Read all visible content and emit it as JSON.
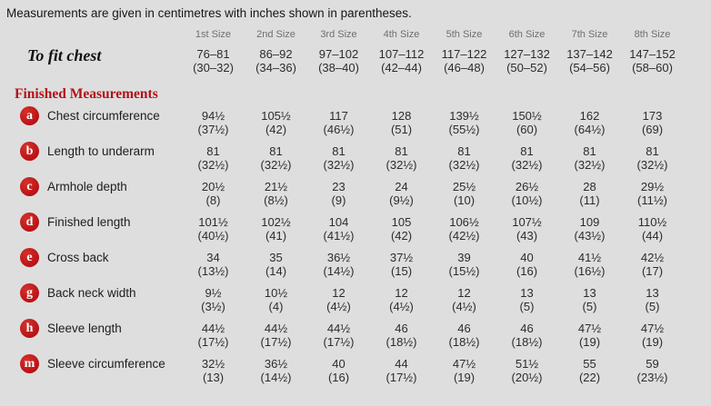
{
  "page": {
    "note": "Measurements are given in centimetres with inches shown in parentheses.",
    "section_heading": "Finished Measurements"
  },
  "colors": {
    "background": "#dedede",
    "heading_red": "#b11219",
    "badge_red": "#c2141a",
    "header_gray": "#6f6f6f",
    "text_dark": "#2c2c2c"
  },
  "table": {
    "size_headers": [
      "1st Size",
      "2nd Size",
      "3rd Size",
      "4th Size",
      "5th Size",
      "6th Size",
      "7th Size",
      "8th Size"
    ],
    "to_fit_chest": {
      "label": "To fit chest",
      "values": [
        {
          "cm": "76–81",
          "in": "(30–32)"
        },
        {
          "cm": "86–92",
          "in": "(34–36)"
        },
        {
          "cm": "97–102",
          "in": "(38–40)"
        },
        {
          "cm": "107–112",
          "in": "(42–44)"
        },
        {
          "cm": "117–122",
          "in": "(46–48)"
        },
        {
          "cm": "127–132",
          "in": "(50–52)"
        },
        {
          "cm": "137–142",
          "in": "(54–56)"
        },
        {
          "cm": "147–152",
          "in": "(58–60)"
        }
      ]
    },
    "rows": [
      {
        "letter": "a",
        "label": "Chest circumference",
        "values": [
          {
            "cm": "94½",
            "in": "(37½)"
          },
          {
            "cm": "105½",
            "in": "(42)"
          },
          {
            "cm": "117",
            "in": "(46½)"
          },
          {
            "cm": "128",
            "in": "(51)"
          },
          {
            "cm": "139½",
            "in": "(55½)"
          },
          {
            "cm": "150½",
            "in": "(60)"
          },
          {
            "cm": "162",
            "in": "(64½)"
          },
          {
            "cm": "173",
            "in": "(69)"
          }
        ]
      },
      {
        "letter": "b",
        "label": "Length to underarm",
        "values": [
          {
            "cm": "81",
            "in": "(32½)"
          },
          {
            "cm": "81",
            "in": "(32½)"
          },
          {
            "cm": "81",
            "in": "(32½)"
          },
          {
            "cm": "81",
            "in": "(32½)"
          },
          {
            "cm": "81",
            "in": "(32½)"
          },
          {
            "cm": "81",
            "in": "(32½)"
          },
          {
            "cm": "81",
            "in": "(32½)"
          },
          {
            "cm": "81",
            "in": "(32½)"
          }
        ]
      },
      {
        "letter": "c",
        "label": "Armhole depth",
        "values": [
          {
            "cm": "20½",
            "in": "(8)"
          },
          {
            "cm": "21½",
            "in": "(8½)"
          },
          {
            "cm": "23",
            "in": "(9)"
          },
          {
            "cm": "24",
            "in": "(9½)"
          },
          {
            "cm": "25½",
            "in": "(10)"
          },
          {
            "cm": "26½",
            "in": "(10½)"
          },
          {
            "cm": "28",
            "in": "(11)"
          },
          {
            "cm": "29½",
            "in": "(11½)"
          }
        ]
      },
      {
        "letter": "d",
        "label": "Finished length",
        "values": [
          {
            "cm": "101½",
            "in": "(40½)"
          },
          {
            "cm": "102½",
            "in": "(41)"
          },
          {
            "cm": "104",
            "in": "(41½)"
          },
          {
            "cm": "105",
            "in": "(42)"
          },
          {
            "cm": "106½",
            "in": "(42½)"
          },
          {
            "cm": "107½",
            "in": "(43)"
          },
          {
            "cm": "109",
            "in": "(43½)"
          },
          {
            "cm": "110½",
            "in": "(44)"
          }
        ]
      },
      {
        "letter": "e",
        "label": "Cross back",
        "values": [
          {
            "cm": "34",
            "in": "(13½)"
          },
          {
            "cm": "35",
            "in": "(14)"
          },
          {
            "cm": "36½",
            "in": "(14½)"
          },
          {
            "cm": "37½",
            "in": "(15)"
          },
          {
            "cm": "39",
            "in": "(15½)"
          },
          {
            "cm": "40",
            "in": "(16)"
          },
          {
            "cm": "41½",
            "in": "(16½)"
          },
          {
            "cm": "42½",
            "in": "(17)"
          }
        ]
      },
      {
        "letter": "g",
        "label": "Back neck width",
        "values": [
          {
            "cm": "9½",
            "in": "(3½)"
          },
          {
            "cm": "10½",
            "in": "(4)"
          },
          {
            "cm": "12",
            "in": "(4½)"
          },
          {
            "cm": "12",
            "in": "(4½)"
          },
          {
            "cm": "12",
            "in": "(4½)"
          },
          {
            "cm": "13",
            "in": "(5)"
          },
          {
            "cm": "13",
            "in": "(5)"
          },
          {
            "cm": "13",
            "in": "(5)"
          }
        ]
      },
      {
        "letter": "h",
        "label": "Sleeve length",
        "values": [
          {
            "cm": "44½",
            "in": "(17½)"
          },
          {
            "cm": "44½",
            "in": "(17½)"
          },
          {
            "cm": "44½",
            "in": "(17½)"
          },
          {
            "cm": "46",
            "in": "(18½)"
          },
          {
            "cm": "46",
            "in": "(18½)"
          },
          {
            "cm": "46",
            "in": "(18½)"
          },
          {
            "cm": "47½",
            "in": "(19)"
          },
          {
            "cm": "47½",
            "in": "(19)"
          }
        ]
      },
      {
        "letter": "m",
        "label": "Sleeve circumference",
        "values": [
          {
            "cm": "32½",
            "in": "(13)"
          },
          {
            "cm": "36½",
            "in": "(14½)"
          },
          {
            "cm": "40",
            "in": "(16)"
          },
          {
            "cm": "44",
            "in": "(17½)"
          },
          {
            "cm": "47½",
            "in": "(19)"
          },
          {
            "cm": "51½",
            "in": "(20½)"
          },
          {
            "cm": "55",
            "in": "(22)"
          },
          {
            "cm": "59",
            "in": "(23½)"
          }
        ]
      }
    ]
  }
}
